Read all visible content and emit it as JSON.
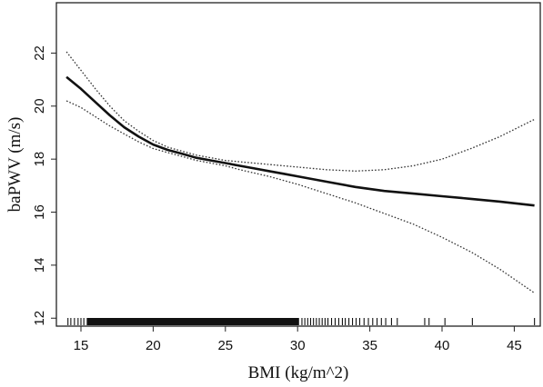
{
  "chart_data": {
    "type": "line",
    "xlabel": "BMI (kg/m^2)",
    "ylabel": "baPWV (m/s)",
    "xlim": [
      13.3,
      46.8
    ],
    "ylim": [
      11.7,
      23.9
    ],
    "xticks": [
      15,
      20,
      25,
      30,
      35,
      40,
      45
    ],
    "yticks": [
      12,
      14,
      16,
      18,
      20,
      22
    ],
    "grid": false,
    "legend": "none",
    "series": [
      {
        "style": "solid",
        "x": [
          14.0,
          15.0,
          16.0,
          17.0,
          18.0,
          19.0,
          20.0,
          21.0,
          22.0,
          23.0,
          24.0,
          25.0,
          26.0,
          27.0,
          28.0,
          29.0,
          30.0,
          32.0,
          34.0,
          36.0,
          38.0,
          40.0,
          42.0,
          44.0,
          46.4
        ],
        "y": [
          21.1,
          20.65,
          20.15,
          19.65,
          19.2,
          18.85,
          18.55,
          18.35,
          18.2,
          18.05,
          17.95,
          17.85,
          17.75,
          17.65,
          17.55,
          17.45,
          17.35,
          17.15,
          16.95,
          16.8,
          16.7,
          16.6,
          16.5,
          16.4,
          16.25
        ]
      },
      {
        "style": "dotted",
        "x": [
          14.0,
          15.0,
          16.0,
          17.0,
          18.0,
          19.0,
          20.0,
          21.0,
          22.0,
          23.0,
          24.0,
          25.0,
          26.0,
          28.0,
          30.0,
          32.0,
          34.0,
          36.0,
          38.0,
          40.0,
          42.0,
          44.0,
          46.4
        ],
        "y": [
          22.05,
          21.35,
          20.65,
          20.0,
          19.45,
          19.05,
          18.7,
          18.45,
          18.3,
          18.15,
          18.05,
          17.95,
          17.9,
          17.8,
          17.7,
          17.6,
          17.55,
          17.6,
          17.75,
          18.0,
          18.4,
          18.85,
          19.5
        ]
      },
      {
        "style": "dotted",
        "x": [
          14.0,
          15.0,
          16.0,
          17.0,
          18.0,
          19.0,
          20.0,
          21.0,
          22.0,
          23.0,
          24.0,
          25.0,
          26.0,
          28.0,
          30.0,
          32.0,
          34.0,
          36.0,
          38.0,
          40.0,
          42.0,
          44.0,
          46.4
        ],
        "y": [
          20.2,
          19.95,
          19.6,
          19.25,
          18.95,
          18.65,
          18.4,
          18.25,
          18.1,
          17.95,
          17.85,
          17.75,
          17.6,
          17.35,
          17.05,
          16.7,
          16.35,
          15.95,
          15.55,
          15.05,
          14.5,
          13.85,
          12.95
        ]
      }
    ],
    "rug": {
      "dense_ranges": [
        [
          15.4,
          30.1
        ]
      ],
      "ticks": [
        14.1,
        14.3,
        14.55,
        14.8,
        15.0,
        15.2,
        30.3,
        30.5,
        30.7,
        30.9,
        31.1,
        31.3,
        31.5,
        31.7,
        31.9,
        32.1,
        32.35,
        32.6,
        32.85,
        33.1,
        33.3,
        33.55,
        33.8,
        34.05,
        34.3,
        34.6,
        34.9,
        35.2,
        35.5,
        35.8,
        36.1,
        36.5,
        36.9,
        38.8,
        39.1,
        40.2,
        42.1,
        46.4
      ]
    }
  }
}
